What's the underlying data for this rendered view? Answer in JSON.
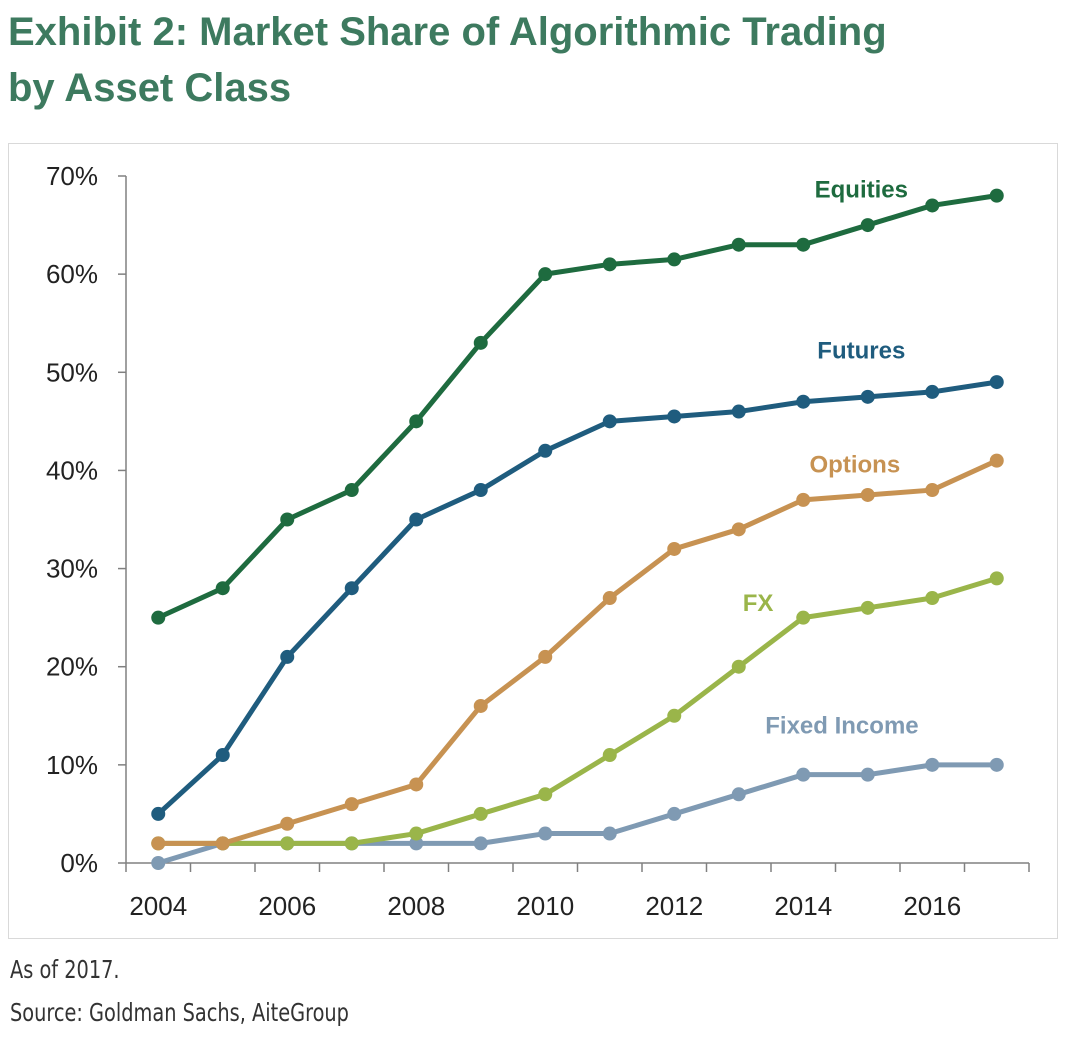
{
  "title": {
    "line1": "Exhibit 2: Market Share of Algorithmic Trading",
    "line2": "by Asset Class"
  },
  "notes": {
    "as_of": "As of 2017.",
    "source": "Source: Goldman Sachs, AiteGroup"
  },
  "chart_data": {
    "type": "line",
    "title": "",
    "xlabel": "",
    "ylabel": "",
    "x": [
      2004,
      2005,
      2006,
      2007,
      2008,
      2009,
      2010,
      2011,
      2012,
      2013,
      2014,
      2015,
      2016,
      2017
    ],
    "xlim": [
      2003.5,
      2017.5
    ],
    "ylim": [
      0,
      70
    ],
    "x_ticks": [
      2004,
      2006,
      2008,
      2010,
      2012,
      2014,
      2016
    ],
    "x_tick_labels": [
      "2004",
      "2006",
      "2008",
      "2010",
      "2012",
      "2014",
      "2016"
    ],
    "y_ticks": [
      0,
      10,
      20,
      30,
      40,
      50,
      60,
      70
    ],
    "y_tick_labels": [
      "0%",
      "10%",
      "20%",
      "30%",
      "40%",
      "50%",
      "60%",
      "70%"
    ],
    "grid": false,
    "legend": "inline labels",
    "series": [
      {
        "name": "Equities",
        "color": "#1e6b3f",
        "values": [
          25,
          28,
          35,
          38,
          45,
          53,
          60,
          61,
          61.5,
          63,
          63,
          65,
          67,
          68
        ]
      },
      {
        "name": "Futures",
        "color": "#1f5c7e",
        "values": [
          5,
          11,
          21,
          28,
          35,
          38,
          42,
          45,
          45.5,
          46,
          47,
          47.5,
          48,
          49
        ]
      },
      {
        "name": "Options",
        "color": "#c79252",
        "values": [
          2,
          2,
          4,
          6,
          8,
          16,
          21,
          27,
          32,
          34,
          37,
          37.5,
          38,
          41
        ]
      },
      {
        "name": "FX",
        "color": "#9ab54a",
        "values": [
          2,
          2,
          2,
          2,
          3,
          5,
          7,
          11,
          15,
          20,
          25,
          26,
          27,
          29
        ]
      },
      {
        "name": "Fixed Income",
        "color": "#7f9ab3",
        "values": [
          0,
          2,
          2,
          2,
          2,
          2,
          3,
          3,
          5,
          7,
          9,
          9,
          10,
          10
        ]
      }
    ]
  }
}
